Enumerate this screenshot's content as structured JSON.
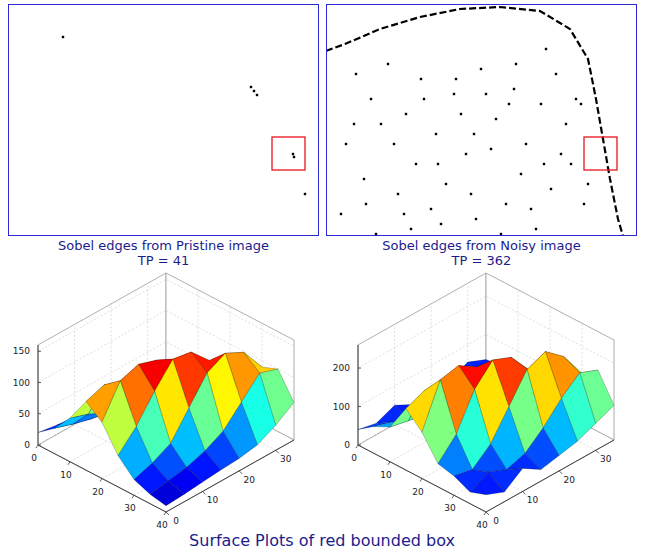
{
  "caption": "Surface Plots of red bounded box",
  "chart_data": [
    {
      "type": "edge_map",
      "title": "Sobel edges from Pristine image",
      "subtitle": "TP = 41",
      "xlim": [
        0,
        311
      ],
      "ylim": [
        0,
        232
      ],
      "tick_labels": false,
      "color": "#000000",
      "x": [
        55,
        243,
        246,
        249,
        285,
        286,
        297
      ],
      "y": [
        33,
        83,
        87,
        91,
        150,
        153,
        190
      ],
      "roi": {
        "x": 264,
        "y": 133,
        "width": 33,
        "height": 33,
        "color": "#e8141e"
      }
    },
    {
      "type": "edge_map",
      "title": "Sobel edges from Noisy image",
      "subtitle": "TP = 362",
      "xlim": [
        0,
        311
      ],
      "ylim": [
        0,
        232
      ],
      "tick_labels": false,
      "color": "#000000",
      "x": [
        30,
        45,
        62,
        80,
        95,
        110,
        128,
        140,
        155,
        170,
        188,
        200,
        215,
        230,
        245,
        20,
        38,
        55,
        72,
        90,
        105,
        120,
        135,
        150,
        165,
        180,
        195,
        210,
        225,
        240,
        258,
        15,
        50,
        85,
        115,
        145,
        175,
        205,
        235,
        262,
        28,
        68,
        98,
        130,
        160,
        190,
        220,
        250,
        40,
        78,
        112,
        148,
        183,
        218,
        255
      ],
      "y": [
        70,
        95,
        60,
        110,
        75,
        130,
        90,
        150,
        65,
        115,
        85,
        140,
        100,
        70,
        160,
        140,
        175,
        120,
        190,
        160,
        205,
        180,
        110,
        215,
        145,
        200,
        170,
        225,
        185,
        120,
        200,
        210,
        230,
        225,
        220,
        190,
        230,
        205,
        150,
        180,
        120,
        140,
        95,
        75,
        90,
        60,
        45,
        95,
        200,
        210,
        160,
        130,
        100,
        160,
        100
      ],
      "curve": {
        "x": [
          0,
          19,
          54,
          94,
          134,
          174,
          214,
          244,
          262,
          270,
          277,
          284,
          292,
          297
        ],
        "y": [
          47,
          40,
          25,
          13,
          5,
          3,
          7,
          25,
          55,
          95,
          135,
          175,
          215,
          232
        ]
      },
      "roi": {
        "x": 258,
        "y": 133,
        "width": 33,
        "height": 33,
        "color": "#e8141e"
      }
    },
    {
      "type": "surface",
      "grid": true,
      "xlim": [
        0,
        40
      ],
      "ylim": [
        0,
        35
      ],
      "zlim": [
        0,
        160
      ],
      "xticks": [
        0,
        10,
        20,
        30,
        40
      ],
      "yticks": [
        0,
        10,
        20,
        30
      ],
      "zticks": [
        0,
        50,
        100,
        150
      ],
      "x": [
        0,
        5,
        10,
        15,
        20,
        25,
        30,
        35,
        40
      ],
      "y": [
        0,
        5,
        10,
        15,
        20,
        25,
        30,
        35
      ],
      "z": [
        [
          20,
          40,
          70,
          110,
          90,
          50,
          25,
          15,
          10
        ],
        [
          15,
          30,
          60,
          120,
          140,
          80,
          35,
          20,
          12
        ],
        [
          12,
          22,
          45,
          100,
          150,
          120,
          50,
          25,
          15
        ],
        [
          10,
          18,
          30,
          70,
          140,
          155,
          90,
          35,
          18
        ],
        [
          10,
          15,
          25,
          45,
          100,
          150,
          130,
          50,
          20
        ],
        [
          12,
          14,
          20,
          30,
          60,
          120,
          145,
          80,
          25
        ],
        [
          10,
          12,
          16,
          22,
          40,
          80,
          130,
          110,
          40
        ],
        [
          10,
          12,
          14,
          18,
          28,
          50,
          90,
          100,
          60
        ]
      ]
    },
    {
      "type": "surface",
      "grid": true,
      "xlim": [
        0,
        40
      ],
      "ylim": [
        0,
        35
      ],
      "zlim": [
        0,
        260
      ],
      "xticks": [
        0,
        10,
        20,
        30,
        40
      ],
      "yticks": [
        0,
        10,
        20,
        30
      ],
      "zticks": [
        0,
        100,
        200
      ],
      "x": [
        0,
        5,
        10,
        15,
        20,
        25,
        30,
        35,
        40
      ],
      "y": [
        0,
        5,
        10,
        15,
        20,
        25,
        30,
        35
      ],
      "z": [
        [
          40,
          70,
          90,
          160,
          120,
          60,
          50,
          30,
          45
        ],
        [
          30,
          55,
          80,
          180,
          230,
          110,
          40,
          55,
          25
        ],
        [
          50,
          35,
          70,
          140,
          240,
          200,
          80,
          35,
          60
        ],
        [
          25,
          45,
          40,
          100,
          210,
          250,
          150,
          50,
          30
        ],
        [
          45,
          30,
          55,
          60,
          130,
          230,
          220,
          90,
          40
        ],
        [
          30,
          50,
          35,
          45,
          70,
          170,
          240,
          140,
          50
        ],
        [
          55,
          35,
          45,
          40,
          50,
          110,
          200,
          180,
          70
        ],
        [
          35,
          40,
          30,
          50,
          45,
          70,
          130,
          160,
          90
        ]
      ]
    }
  ]
}
